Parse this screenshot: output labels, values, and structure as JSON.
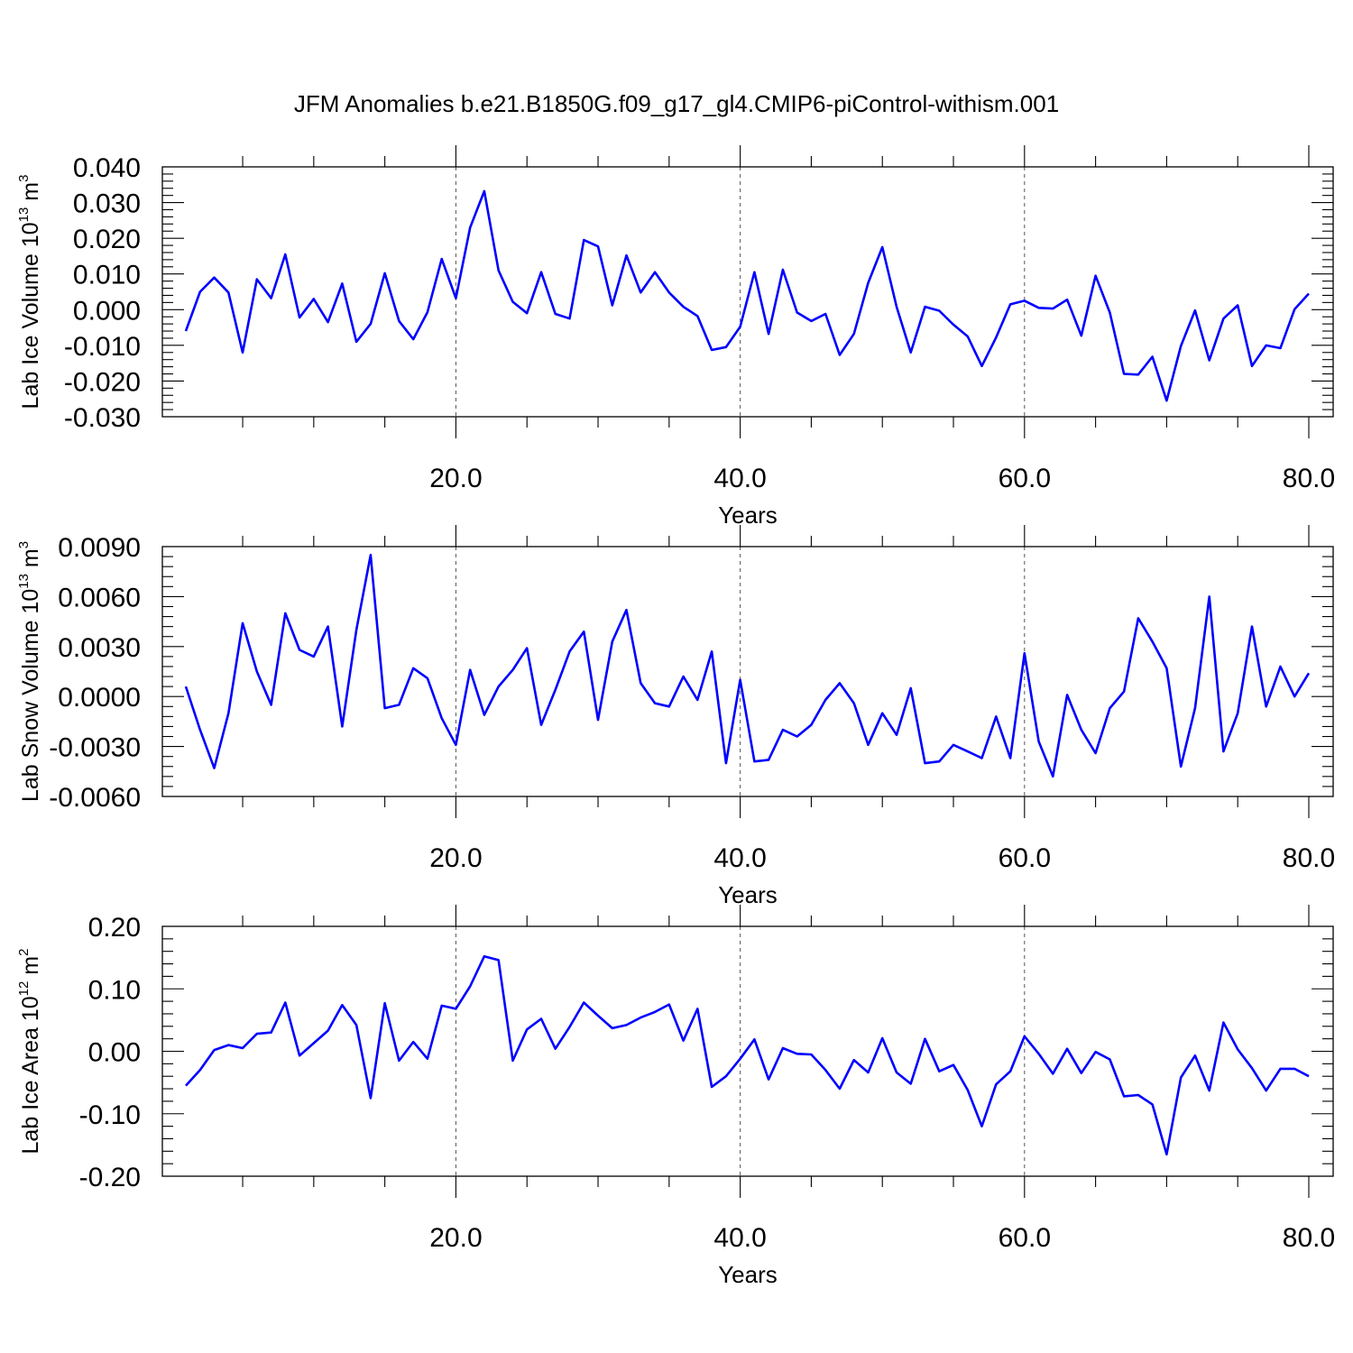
{
  "figure_title": "JFM Anomalies b.e21.B1850G.f09_g17_gl4.CMIP6-piControl-withism.001",
  "line_color": "#0000ff",
  "chart_data": [
    {
      "type": "line",
      "ylabel": "Lab Ice Volume 10",
      "ylabel_exp": "13",
      "ylabel_unit": "m",
      "ylabel_unit_exp": "3",
      "xlabel": "Years",
      "xlim": [
        1,
        80
      ],
      "ylim": [
        -0.03,
        0.04
      ],
      "yticks": [
        -0.03,
        -0.02,
        -0.01,
        0.0,
        0.01,
        0.02,
        0.03,
        0.04
      ],
      "ytick_labels": [
        "-0.030",
        "-0.020",
        "-0.010",
        "0.000",
        "0.010",
        "0.020",
        "0.030",
        "0.040"
      ],
      "xticks": [
        20,
        40,
        60,
        80
      ],
      "xtick_labels": [
        "20.0",
        "40.0",
        "60.0",
        "80.0"
      ],
      "grid_x": [
        20,
        40,
        60
      ],
      "x": [
        1,
        2,
        3,
        4,
        5,
        6,
        7,
        8,
        9,
        10,
        11,
        12,
        13,
        14,
        15,
        16,
        17,
        18,
        19,
        20,
        21,
        22,
        23,
        24,
        25,
        26,
        27,
        28,
        29,
        30,
        31,
        32,
        33,
        34,
        35,
        36,
        37,
        38,
        39,
        40,
        41,
        42,
        43,
        44,
        45,
        46,
        47,
        48,
        49,
        50,
        51,
        52,
        53,
        54,
        55,
        56,
        57,
        58,
        59,
        60,
        61,
        62,
        63,
        64,
        65,
        66,
        67,
        68,
        69,
        70,
        71,
        72,
        73,
        74,
        75,
        76,
        77,
        78,
        79,
        80
      ],
      "values": [
        -0.006,
        0.005,
        0.009,
        0.0048,
        -0.012,
        0.0085,
        0.0032,
        0.0155,
        -0.0022,
        0.003,
        -0.0035,
        0.0073,
        -0.009,
        -0.004,
        0.0102,
        -0.0032,
        -0.0083,
        -0.0007,
        0.0142,
        0.0032,
        0.023,
        0.0332,
        0.011,
        0.0022,
        -0.001,
        0.0105,
        -0.0012,
        -0.0025,
        0.0195,
        0.0177,
        0.0012,
        0.0152,
        0.0048,
        0.0105,
        0.0048,
        0.0008,
        -0.0018,
        -0.0113,
        -0.0105,
        -0.0048,
        0.0105,
        -0.0068,
        0.0112,
        -0.0008,
        -0.0032,
        -0.0012,
        -0.0127,
        -0.0068,
        0.0075,
        0.0175,
        0.0008,
        -0.012,
        0.0008,
        -0.0003,
        -0.0042,
        -0.0075,
        -0.0158,
        -0.0078,
        0.0015,
        0.0025,
        0.0005,
        0.0003,
        0.0028,
        -0.0073,
        0.0095,
        -0.0008,
        -0.018,
        -0.0182,
        -0.0132,
        -0.0255,
        -0.0102,
        -0.0002,
        -0.0142,
        -0.0025,
        0.0012,
        -0.0158,
        -0.01,
        -0.0108,
        0.0001,
        0.0045
      ]
    },
    {
      "type": "line",
      "ylabel": "Lab Snow Volume 10",
      "ylabel_exp": "13",
      "ylabel_unit": "m",
      "ylabel_unit_exp": "3",
      "xlabel": "Years",
      "xlim": [
        1,
        80
      ],
      "ylim": [
        -0.006,
        0.009
      ],
      "yticks": [
        -0.006,
        -0.003,
        0.0,
        0.003,
        0.006,
        0.009
      ],
      "ytick_labels": [
        "-0.0060",
        "-0.0030",
        "0.0000",
        "0.0030",
        "0.0060",
        "0.0090"
      ],
      "xticks": [
        20,
        40,
        60,
        80
      ],
      "xtick_labels": [
        "20.0",
        "40.0",
        "60.0",
        "80.0"
      ],
      "grid_x": [
        20,
        40,
        60
      ],
      "x": [
        1,
        2,
        3,
        4,
        5,
        6,
        7,
        8,
        9,
        10,
        11,
        12,
        13,
        14,
        15,
        16,
        17,
        18,
        19,
        20,
        21,
        22,
        23,
        24,
        25,
        26,
        27,
        28,
        29,
        30,
        31,
        32,
        33,
        34,
        35,
        36,
        37,
        38,
        39,
        40,
        41,
        42,
        43,
        44,
        45,
        46,
        47,
        48,
        49,
        50,
        51,
        52,
        53,
        54,
        55,
        56,
        57,
        58,
        59,
        60,
        61,
        62,
        63,
        64,
        65,
        66,
        67,
        68,
        69,
        70,
        71,
        72,
        73,
        74,
        75,
        76,
        77,
        78,
        79,
        80
      ],
      "values": [
        0.0006,
        -0.002,
        -0.0043,
        -0.001,
        0.0044,
        0.0015,
        -0.0005,
        0.005,
        0.0028,
        0.0024,
        0.0042,
        -0.0018,
        0.004,
        0.0085,
        -0.0007,
        -0.0005,
        0.0017,
        0.0011,
        -0.0013,
        -0.0029,
        0.0016,
        -0.0011,
        0.0006,
        0.0016,
        0.0029,
        -0.0017,
        0.0004,
        0.0027,
        0.0039,
        -0.0014,
        0.0033,
        0.0052,
        0.0008,
        -0.0004,
        -0.0006,
        0.0012,
        -0.0002,
        0.0027,
        -0.004,
        0.001,
        -0.0039,
        -0.0038,
        -0.002,
        -0.0024,
        -0.0017,
        -0.0002,
        0.0008,
        -0.0004,
        -0.0029,
        -0.001,
        -0.0023,
        0.0005,
        -0.004,
        -0.0039,
        -0.0029,
        -0.0033,
        -0.0037,
        -0.0012,
        -0.0037,
        0.0026,
        -0.0027,
        -0.0048,
        0.0001,
        -0.002,
        -0.0034,
        -0.0007,
        0.0003,
        0.0047,
        0.0033,
        0.0017,
        -0.0042,
        -0.0007,
        0.006,
        -0.0033,
        -0.001,
        0.0042,
        -0.0006,
        0.0018,
        0,
        0.0014
      ]
    },
    {
      "type": "line",
      "ylabel": "Lab Ice Area 10",
      "ylabel_exp": "12",
      "ylabel_unit": "m",
      "ylabel_unit_exp": "2",
      "xlabel": "Years",
      "xlim": [
        1,
        80
      ],
      "ylim": [
        -0.2,
        0.2
      ],
      "yticks": [
        -0.2,
        -0.1,
        0.0,
        0.1,
        0.2
      ],
      "ytick_labels": [
        "-0.20",
        "-0.10",
        "0.00",
        "0.10",
        "0.20"
      ],
      "xticks": [
        20,
        40,
        60,
        80
      ],
      "xtick_labels": [
        "20.0",
        "40.0",
        "60.0",
        "80.0"
      ],
      "grid_x": [
        20,
        40,
        60
      ],
      "x": [
        1,
        2,
        3,
        4,
        5,
        6,
        7,
        8,
        9,
        10,
        11,
        12,
        13,
        14,
        15,
        16,
        17,
        18,
        19,
        20,
        21,
        22,
        23,
        24,
        25,
        26,
        27,
        28,
        29,
        30,
        31,
        32,
        33,
        34,
        35,
        36,
        37,
        38,
        39,
        40,
        41,
        42,
        43,
        44,
        45,
        46,
        47,
        48,
        49,
        50,
        51,
        52,
        53,
        54,
        55,
        56,
        57,
        58,
        59,
        60,
        61,
        62,
        63,
        64,
        65,
        66,
        67,
        68,
        69,
        70,
        71,
        72,
        73,
        74,
        75,
        76,
        77,
        78,
        79,
        80
      ],
      "values": [
        -0.055,
        -0.03,
        0.002,
        0.01,
        0.005,
        0.028,
        0.03,
        0.078,
        -0.007,
        0.013,
        0.033,
        0.074,
        0.042,
        -0.075,
        0.077,
        -0.015,
        0.015,
        -0.012,
        0.073,
        0.068,
        0.104,
        0.152,
        0.146,
        -0.015,
        0.035,
        0.052,
        0.004,
        0.039,
        0.078,
        0.057,
        0.037,
        0.042,
        0.054,
        0.063,
        0.075,
        0.017,
        0.068,
        -0.057,
        -0.04,
        -0.012,
        0.019,
        -0.045,
        0.005,
        -0.004,
        -0.005,
        -0.03,
        -0.06,
        -0.014,
        -0.034,
        0.021,
        -0.034,
        -0.052,
        0.02,
        -0.032,
        -0.022,
        -0.062,
        -0.12,
        -0.053,
        -0.032,
        0.024,
        -0.004,
        -0.036,
        0.004,
        -0.035,
        -0.001,
        -0.013,
        -0.072,
        -0.07,
        -0.085,
        -0.165,
        -0.042,
        -0.007,
        -0.063,
        0.046,
        0.003,
        -0.027,
        -0.063,
        -0.028,
        -0.028,
        -0.04
      ]
    }
  ]
}
